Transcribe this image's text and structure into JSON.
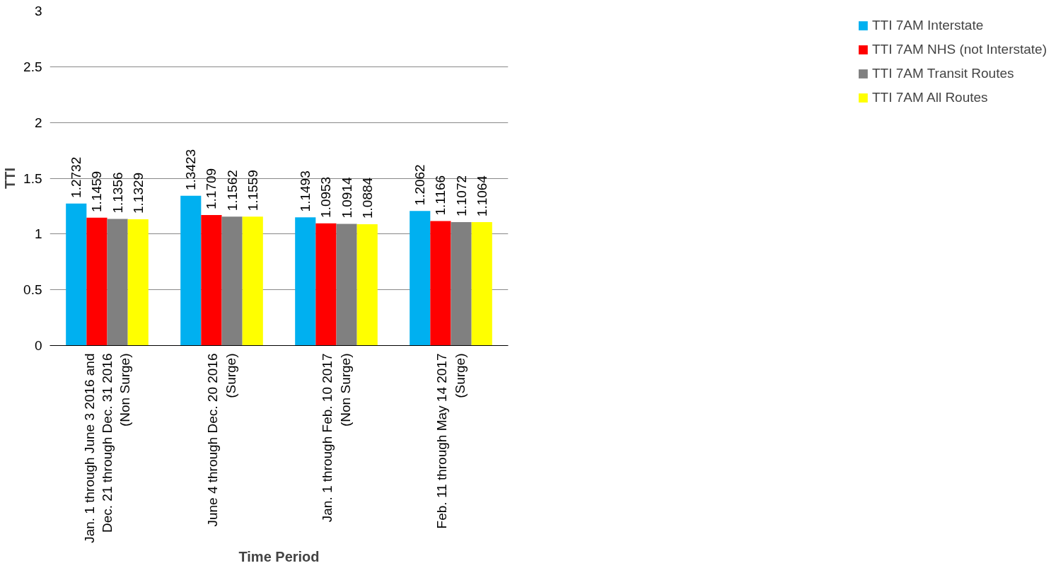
{
  "chart_data": {
    "type": "bar",
    "xlabel": "Time Period",
    "ylabel": "TTI",
    "categories": [
      "Jan. 1 through June 3 2016 and\nDec. 21 through Dec. 31 2016\n(Non Surge)",
      "June 4 through Dec. 20 2016\n(Surge)",
      "Jan. 1 through Feb. 10 2017\n(Non Surge)",
      "Feb. 11 through May 14 2017\n(Surge)"
    ],
    "series": [
      {
        "name": "TTI 7AM Interstate",
        "color": "#00b0f0",
        "values": [
          1.2732,
          1.3423,
          1.1493,
          1.2062
        ]
      },
      {
        "name": "TTI 7AM NHS (not Interstate)",
        "color": "#ff0000",
        "values": [
          1.1459,
          1.1709,
          1.0953,
          1.1166
        ]
      },
      {
        "name": "TTI 7AM Transit Routes",
        "color": "#808080",
        "values": [
          1.1356,
          1.1562,
          1.0914,
          1.1072
        ]
      },
      {
        "name": "TTI 7AM All Routes",
        "color": "#ffff00",
        "values": [
          1.1329,
          1.1559,
          1.0884,
          1.1064
        ]
      }
    ],
    "ylim": [
      0,
      3
    ],
    "yticks": [
      0,
      0.5,
      1,
      1.5,
      2,
      2.5,
      3
    ],
    "grid": "y",
    "legend": "right",
    "data_labels": true
  }
}
